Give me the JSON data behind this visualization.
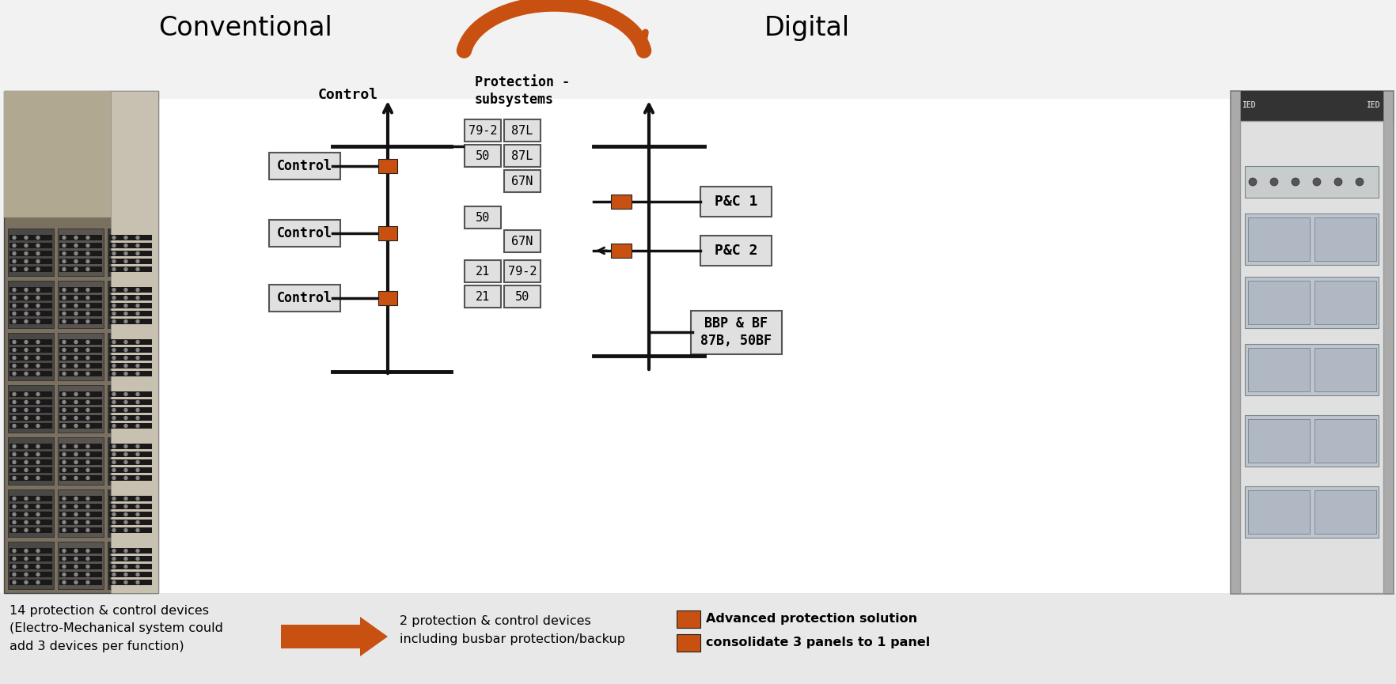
{
  "title_conventional": "Conventional",
  "title_digital": "Digital",
  "bg_color": "#f2f2f2",
  "orange": "#c85010",
  "box_bg": "#e0e0e0",
  "box_border": "#555555",
  "line_color": "#111111",
  "conv_label_control": "Control",
  "conv_label_prot": "Protection -\nsubsystems",
  "conv_control_boxes": [
    "Control",
    "Control",
    "Control"
  ],
  "prot_boxes": [
    [
      610,
      700,
      46,
      28,
      "79-2"
    ],
    [
      660,
      700,
      46,
      28,
      "87L"
    ],
    [
      610,
      668,
      46,
      28,
      "50"
    ],
    [
      660,
      668,
      46,
      28,
      "87L"
    ],
    [
      660,
      636,
      46,
      28,
      "67N"
    ],
    [
      610,
      590,
      46,
      28,
      "50"
    ],
    [
      660,
      560,
      46,
      28,
      "67N"
    ],
    [
      610,
      522,
      46,
      28,
      "21"
    ],
    [
      660,
      522,
      46,
      28,
      "79-2"
    ],
    [
      610,
      490,
      46,
      28,
      "21"
    ],
    [
      660,
      490,
      46,
      28,
      "50"
    ]
  ],
  "dig_boxes": [
    [
      930,
      605,
      90,
      38,
      "P&C 1"
    ],
    [
      930,
      545,
      90,
      38,
      "P&C 2"
    ],
    [
      930,
      445,
      115,
      55,
      "BBP & BF\n87B, 50BF"
    ]
  ],
  "footer_left": "14 protection & control devices\n(Electro-Mechanical system could\nadd 3 devices per function)",
  "footer_mid": "2 protection & control devices\nincluding busbar protection/backup",
  "footer_right_top": "Advanced protection solution",
  "footer_right_bot": "consolidate 3 panels to 1 panel"
}
